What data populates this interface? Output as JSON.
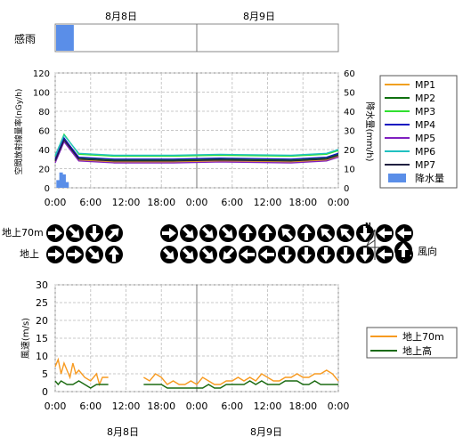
{
  "colors": {
    "MP1": "#f0a020",
    "MP2": "#107010",
    "MP3": "#30e030",
    "MP4": "#1010c0",
    "MP5": "#8020c0",
    "MP6": "#20c0c0",
    "MP7": "#202040",
    "rain": "#5a8ee8",
    "wind70": "#f79a20",
    "windGround": "#1a6a10",
    "grid": "#c8c8c8",
    "midline": "#777777"
  },
  "date_labels": {
    "day1": "8月8日",
    "day2": "8月9日"
  },
  "time_ticks": [
    "0:00",
    "6:00",
    "12:00",
    "18:00",
    "0:00",
    "6:00",
    "12:00",
    "18:00",
    "0:00"
  ],
  "rain_sense": {
    "label": "感雨",
    "active_hours": [
      0,
      3
    ]
  },
  "chart_data": [
    {
      "type": "line",
      "ylabel_left": "空間放射線量率(nGy/h)",
      "ylabel_right": "降水量(mm/h)",
      "ylim_left": [
        0,
        120
      ],
      "yticks_left": [
        "0",
        "20",
        "40",
        "60",
        "80",
        "100",
        "120"
      ],
      "ylim_right": [
        0,
        60
      ],
      "yticks_right": [
        "0",
        "10",
        "20",
        "30",
        "40",
        "50",
        "60"
      ],
      "grid": true,
      "legend_position": "right",
      "series": [
        {
          "name": "MP1",
          "values": [
            [
              0,
              27
            ],
            [
              1.5,
              50
            ],
            [
              4,
              29
            ],
            [
              10,
              27
            ],
            [
              20,
              27
            ],
            [
              28,
              28
            ],
            [
              40,
              27
            ],
            [
              46,
              29
            ],
            [
              48,
              33
            ]
          ]
        },
        {
          "name": "MP2",
          "values": [
            [
              0,
              29
            ],
            [
              1.5,
              52
            ],
            [
              4,
              31
            ],
            [
              10,
              29
            ],
            [
              20,
              29
            ],
            [
              28,
              30
            ],
            [
              40,
              29
            ],
            [
              46,
              31
            ],
            [
              48,
              35
            ]
          ]
        },
        {
          "name": "MP3",
          "values": [
            [
              0,
              33
            ],
            [
              1.5,
              56
            ],
            [
              4,
              35
            ],
            [
              10,
              33
            ],
            [
              20,
              33
            ],
            [
              28,
              34
            ],
            [
              40,
              33
            ],
            [
              46,
              35
            ],
            [
              48,
              39
            ]
          ]
        },
        {
          "name": "MP4",
          "values": [
            [
              0,
              30
            ],
            [
              1.5,
              52
            ],
            [
              4,
              32
            ],
            [
              10,
              30
            ],
            [
              20,
              30
            ],
            [
              28,
              31
            ],
            [
              40,
              30
            ],
            [
              46,
              32
            ],
            [
              48,
              36
            ]
          ]
        },
        {
          "name": "MP5",
          "values": [
            [
              0,
              26
            ],
            [
              1.5,
              48
            ],
            [
              4,
              28
            ],
            [
              10,
              26
            ],
            [
              20,
              26
            ],
            [
              28,
              27
            ],
            [
              40,
              26
            ],
            [
              46,
              28
            ],
            [
              48,
              32
            ]
          ]
        },
        {
          "name": "MP6",
          "values": [
            [
              0,
              34
            ],
            [
              1.5,
              55
            ],
            [
              4,
              36
            ],
            [
              10,
              34
            ],
            [
              20,
              34
            ],
            [
              28,
              35
            ],
            [
              40,
              34
            ],
            [
              46,
              36
            ],
            [
              48,
              40
            ]
          ]
        },
        {
          "name": "MP7",
          "values": [
            [
              0,
              28
            ],
            [
              1.5,
              50
            ],
            [
              4,
              30
            ],
            [
              10,
              28
            ],
            [
              20,
              28
            ],
            [
              28,
              29
            ],
            [
              40,
              28
            ],
            [
              46,
              30
            ],
            [
              48,
              34
            ]
          ]
        }
      ],
      "bars": {
        "name": "降水量",
        "values": [
          [
            0.5,
            4
          ],
          [
            1.0,
            8
          ],
          [
            1.5,
            7
          ],
          [
            2.0,
            3
          ]
        ]
      }
    },
    {
      "type": "line",
      "ylabel": "風速(m/s)",
      "ylim": [
        0,
        30
      ],
      "yticks": [
        "0",
        "5",
        "10",
        "15",
        "20",
        "25",
        "30"
      ],
      "grid": true,
      "legend_position": "right",
      "series": [
        {
          "name": "地上70m",
          "values": [
            [
              0,
              7
            ],
            [
              0.5,
              9
            ],
            [
              1,
              5
            ],
            [
              1.5,
              8
            ],
            [
              2,
              6
            ],
            [
              2.5,
              4
            ],
            [
              3,
              8
            ],
            [
              3.5,
              5
            ],
            [
              4,
              6
            ],
            [
              5,
              4
            ],
            [
              6,
              3
            ],
            [
              7,
              5
            ],
            [
              7.5,
              2
            ],
            [
              8,
              4
            ],
            [
              9,
              4
            ],
            null,
            [
              15,
              4
            ],
            [
              16,
              3
            ],
            [
              17,
              5
            ],
            [
              18,
              4
            ],
            [
              19,
              2
            ],
            [
              20,
              3
            ],
            [
              21,
              2
            ],
            [
              22,
              2
            ],
            [
              23,
              3
            ],
            [
              24,
              2
            ],
            [
              25,
              4
            ],
            [
              26,
              3
            ],
            [
              27,
              2
            ],
            [
              28,
              2
            ],
            [
              29,
              3
            ],
            [
              30,
              3
            ],
            [
              31,
              4
            ],
            [
              32,
              3
            ],
            [
              33,
              4
            ],
            [
              34,
              3
            ],
            [
              35,
              5
            ],
            [
              36,
              4
            ],
            [
              37,
              3
            ],
            [
              38,
              3
            ],
            [
              39,
              4
            ],
            [
              40,
              4
            ],
            [
              41,
              5
            ],
            [
              42,
              4
            ],
            [
              43,
              4
            ],
            [
              44,
              5
            ],
            [
              45,
              5
            ],
            [
              46,
              6
            ],
            [
              47,
              5
            ],
            [
              48,
              3
            ]
          ]
        },
        {
          "name": "地上高",
          "values": [
            [
              0,
              3
            ],
            [
              0.5,
              2
            ],
            [
              1,
              3
            ],
            [
              2,
              2
            ],
            [
              3,
              2
            ],
            [
              4,
              3
            ],
            [
              5,
              2
            ],
            [
              6,
              1
            ],
            [
              7,
              2
            ],
            [
              8,
              2
            ],
            [
              9,
              2
            ],
            null,
            [
              15,
              2
            ],
            [
              16,
              2
            ],
            [
              17,
              2
            ],
            [
              18,
              2
            ],
            [
              19,
              1
            ],
            [
              20,
              1
            ],
            [
              21,
              1
            ],
            [
              22,
              1
            ],
            [
              23,
              1
            ],
            [
              24,
              1
            ],
            [
              25,
              1
            ],
            [
              26,
              2
            ],
            [
              27,
              1
            ],
            [
              28,
              1
            ],
            [
              29,
              2
            ],
            [
              30,
              2
            ],
            [
              31,
              2
            ],
            [
              32,
              2
            ],
            [
              33,
              3
            ],
            [
              34,
              2
            ],
            [
              35,
              3
            ],
            [
              36,
              2
            ],
            [
              37,
              2
            ],
            [
              38,
              2
            ],
            [
              39,
              3
            ],
            [
              40,
              3
            ],
            [
              41,
              3
            ],
            [
              42,
              2
            ],
            [
              43,
              2
            ],
            [
              44,
              3
            ],
            [
              45,
              2
            ],
            [
              46,
              2
            ],
            [
              47,
              2
            ],
            [
              48,
              2
            ]
          ]
        }
      ]
    }
  ],
  "wind_direction": {
    "row1_label": "地上70m",
    "row2_label": "地上",
    "legend_label": "風向",
    "compass_label": "N",
    "row1_degrees": [
      90,
      135,
      180,
      45,
      null,
      90,
      135,
      135,
      135,
      0,
      0,
      315,
      0,
      315,
      315,
      180,
      270,
      270
    ],
    "row2_degrees": [
      90,
      90,
      135,
      0,
      null,
      135,
      135,
      135,
      225,
      270,
      270,
      180,
      180,
      180,
      180,
      180,
      270,
      270
    ]
  }
}
